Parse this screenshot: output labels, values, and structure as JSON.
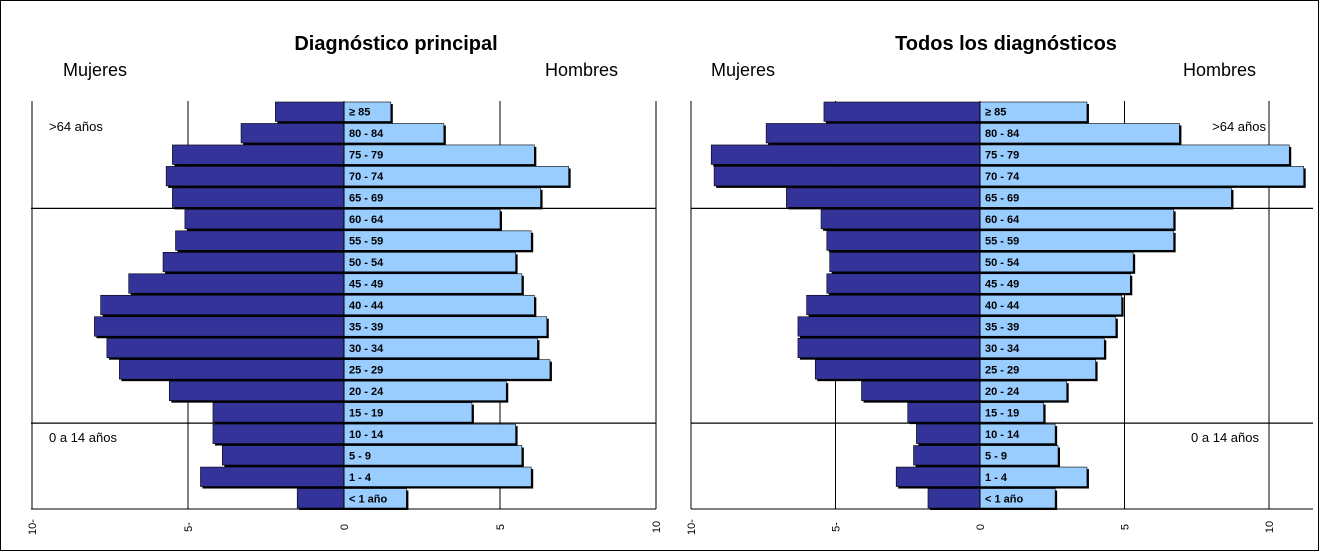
{
  "chart_data": [
    {
      "type": "bar",
      "title": "Diagnóstico principal",
      "left_label": "Mujeres",
      "right_label": "Hombres",
      "group_labels": [
        ">64 años",
        "0 a 14 años"
      ],
      "categories": [
        "≥ 85",
        "80 - 84",
        "75 - 79",
        "70 - 74",
        "65 - 69",
        "60 - 64",
        "55 - 59",
        "50 - 54",
        "45 - 49",
        "40 - 44",
        "35 - 39",
        "30 - 34",
        "25 - 29",
        "20 - 24",
        "15 - 19",
        "10 - 14",
        "5 - 9",
        "1 - 4",
        "< 1 año"
      ],
      "series": [
        {
          "name": "Mujeres",
          "values": [
            2.2,
            3.3,
            5.5,
            5.7,
            5.5,
            5.1,
            5.4,
            5.8,
            6.9,
            7.8,
            8.0,
            7.6,
            7.2,
            5.6,
            4.2,
            4.2,
            3.9,
            4.6,
            1.5
          ]
        },
        {
          "name": "Hombres",
          "values": [
            1.5,
            3.2,
            6.1,
            7.2,
            6.3,
            5.0,
            6.0,
            5.5,
            5.7,
            6.1,
            6.5,
            6.2,
            6.6,
            5.2,
            4.1,
            5.5,
            5.7,
            6.0,
            2.0
          ]
        }
      ],
      "xlim": [
        -10,
        10
      ],
      "ticks": [
        -10,
        -5,
        0,
        5,
        10
      ],
      "tick_labels": [
        "10-",
        "5-",
        "0",
        "5",
        "10"
      ],
      "group_boundaries": [
        "60 - 64",
        "10 - 14"
      ],
      "grid": true
    },
    {
      "type": "bar",
      "title": "Todos los diagnósticos",
      "left_label": "Mujeres",
      "right_label": "Hombres",
      "group_labels": [
        ">64 años",
        "0 a 14 años"
      ],
      "categories": [
        "≥ 85",
        "80 - 84",
        "75 - 79",
        "70 - 74",
        "65 - 69",
        "60 - 64",
        "55 - 59",
        "50 - 54",
        "45 - 49",
        "40 - 44",
        "35 - 39",
        "30 - 34",
        "25 - 29",
        "20 - 24",
        "15 - 19",
        "10 - 14",
        "5 - 9",
        "1 - 4",
        "< 1 año"
      ],
      "series": [
        {
          "name": "Mujeres",
          "values": [
            5.4,
            7.4,
            9.3,
            9.2,
            6.7,
            5.5,
            5.3,
            5.2,
            5.3,
            6.0,
            6.3,
            6.3,
            5.7,
            4.1,
            2.5,
            2.2,
            2.3,
            2.9,
            1.8
          ]
        },
        {
          "name": "Hombres",
          "values": [
            3.7,
            6.9,
            10.7,
            11.2,
            8.7,
            6.7,
            6.7,
            5.3,
            5.2,
            4.9,
            4.7,
            4.3,
            4.0,
            3.0,
            2.2,
            2.6,
            2.7,
            3.7,
            2.6
          ]
        }
      ],
      "xlim": [
        -10,
        11.5
      ],
      "ticks": [
        -10,
        -5,
        0,
        5,
        10
      ],
      "tick_labels": [
        "10-",
        "5-",
        "0",
        "5",
        "10"
      ],
      "group_boundaries": [
        "60 - 64",
        "10 - 14"
      ],
      "grid": true
    }
  ],
  "colors": {
    "women": "#333399",
    "men": "#99CCFF",
    "shadow": "#000000",
    "grid": "#000000"
  }
}
